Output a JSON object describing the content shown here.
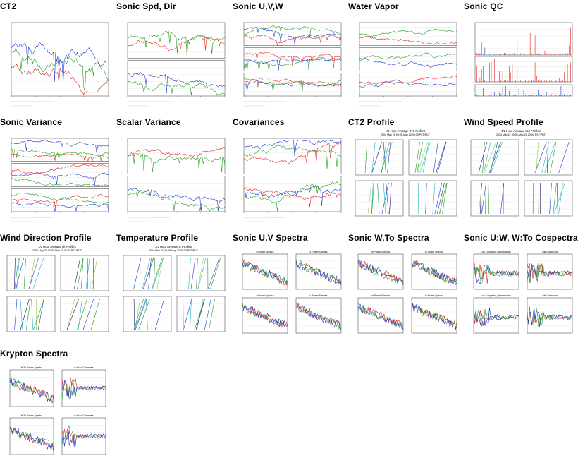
{
  "tiles": [
    {
      "id": "ct2",
      "title": "CT2",
      "kind": "ts",
      "panels": 1
    },
    {
      "id": "sonic-spd-dir",
      "title": "Sonic Spd, Dir",
      "kind": "ts",
      "panels": 2
    },
    {
      "id": "sonic-uvw",
      "title": "Sonic U,V,W",
      "kind": "ts",
      "panels": 3
    },
    {
      "id": "water-vapor",
      "title": "Water Vapor",
      "kind": "ts",
      "panels": 3
    },
    {
      "id": "sonic-qc",
      "title": "Sonic QC",
      "kind": "qc",
      "panels": 3
    },
    {
      "id": "sonic-variance",
      "title": "Sonic Variance",
      "kind": "ts",
      "panels": 3
    },
    {
      "id": "scalar-variance",
      "title": "Scalar Variance",
      "kind": "ts",
      "panels": 2
    },
    {
      "id": "covariances",
      "title": "Covariances",
      "kind": "ts",
      "panels": 2
    },
    {
      "id": "ct2-profile",
      "title": "CT2 Profile",
      "kind": "profile",
      "subtitle": "1/2 Hour Average CT2 Profiles",
      "subtitle2": "2004 May 21 00:00-May 22 00:00 PST/PDT"
    },
    {
      "id": "wind-speed-profile",
      "title": "Wind Speed Profile",
      "kind": "profile",
      "subtitle": "1/2 Hour Average spd Profiles",
      "subtitle2": "2004 May 21 00:00-May 22 00:00 PST/PDT"
    },
    {
      "id": "wind-direction-profile",
      "title": "Wind Direction Profile",
      "kind": "profile",
      "subtitle": "1/2 Hour Average dir Profiles",
      "subtitle2": "2004 May 21 00:00-May 22 00:00 PST/PDT"
    },
    {
      "id": "temperature-profile",
      "title": "Temperature Profile",
      "kind": "profile",
      "subtitle": "1/2 Hour Average tc Profiles",
      "subtitle2": "2004 May 21 00:00-May 22 00:00 PST/PDT"
    },
    {
      "id": "sonic-uv-spectra",
      "title": "Sonic U,V Spectra",
      "kind": "spectra",
      "labels": [
        "u Power Spectra",
        "v Power Spectra",
        "u Power Spectra",
        "v Power Spectra"
      ]
    },
    {
      "id": "sonic-wto-spectra",
      "title": "Sonic W,To Spectra",
      "kind": "spectra",
      "labels": [
        "w Power Spectra",
        "tc Power Spectra",
        "w Power Spectra",
        "tc Power Spectra"
      ]
    },
    {
      "id": "sonic-uw-wto-cospectra",
      "title": "Sonic U:W, W:To Cospectra",
      "kind": "cospectra",
      "labels": [
        "uw Cospectra (streamwise)",
        "wtc Cospectra",
        "uw Cospectra (streamwise)",
        "wtc Cospectra"
      ]
    },
    {
      "id": "krypton-spectra",
      "title": "Krypton Spectra",
      "kind": "krypton",
      "labels": [
        "kh2o Power Spectra",
        "w:kh2o Cospectra",
        "kh2o Power Spectra",
        "w:kh2o Cospectra"
      ]
    }
  ],
  "colors": {
    "red": "#e8231b",
    "green": "#1f9d1f",
    "blue": "#1f3bd6",
    "lime": "#8fd13a",
    "cyan": "#1fb5c9",
    "navy": "#1a1a6e"
  }
}
